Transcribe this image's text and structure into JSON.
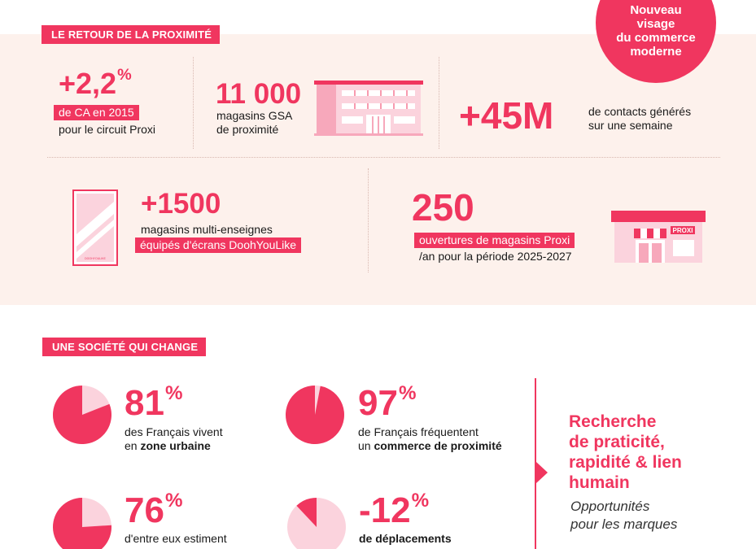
{
  "badge": {
    "lines": [
      "Nouveau",
      "visage",
      "du commerce",
      "moderne"
    ]
  },
  "section1": {
    "tag": "LE RETOUR DE LA PROXIMITÉ",
    "stat_ca": {
      "value": "+2,2",
      "unit": "%",
      "highlight": "de CA en 2015",
      "caption": "pour le circuit Proxi"
    },
    "stat_stores": {
      "value": "11 000",
      "line1": "magasins GSA",
      "line2": "de proximité"
    },
    "stat_contacts": {
      "value": "+45M",
      "line1": "de contacts générés",
      "line2": "sur une semaine"
    },
    "stat_screens": {
      "value": "+1500",
      "caption": "magasins multi-enseignes",
      "highlight": "équipés d'écrans DoohYouLike",
      "screen_label": "DOOHYOULIKE"
    },
    "stat_openings": {
      "value": "250",
      "highlight": "ouvertures de magasins Proxi",
      "caption": "/an pour la période 2025-2027",
      "shop_sign": "PROXI"
    }
  },
  "section2": {
    "tag": "UNE SOCIÉTÉ QUI CHANGE",
    "stats": [
      {
        "value": "81",
        "unit": "%",
        "pct": 81,
        "line1": "des Français vivent",
        "line2_pre": "en ",
        "line2_strong": "zone urbaine"
      },
      {
        "value": "97",
        "unit": "%",
        "pct": 97,
        "line1": "de Français fréquentent",
        "line2_pre": "un ",
        "line2_strong": "commerce de proximité"
      },
      {
        "value": "76",
        "unit": "%",
        "pct": 76,
        "line1": "d'entre eux estiment"
      },
      {
        "value": "-12",
        "unit": "%",
        "pct": 12,
        "line1_strong": "de déplacements"
      }
    ],
    "side_heading": [
      "Recherche",
      "de praticité,",
      "rapidité & lien",
      "humain"
    ],
    "side_sub": [
      "Opportunités",
      "pour les marques"
    ]
  },
  "colors": {
    "accent": "#f0365f",
    "light_pink": "#fbd3dd",
    "section_bg": "#fdf1ec"
  }
}
